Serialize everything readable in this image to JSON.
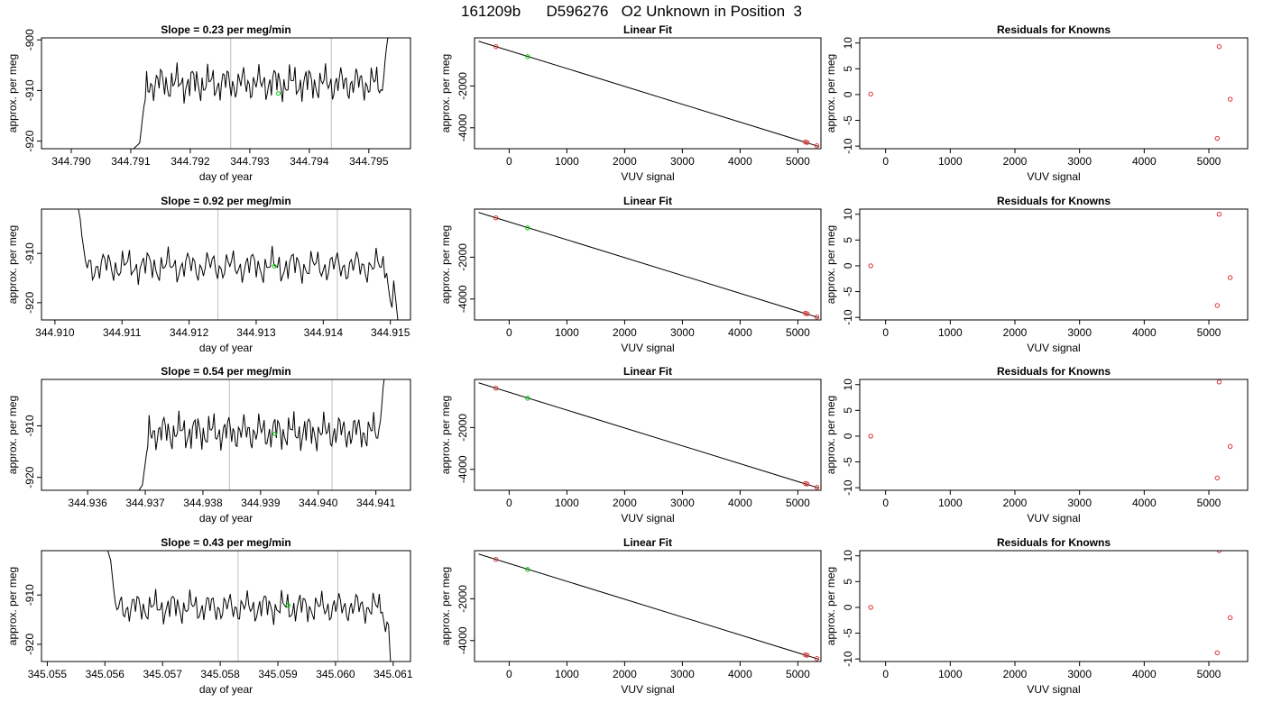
{
  "page": {
    "title": "161209b      D596276   O2 Unknown in Position  3"
  },
  "chart_data": [
    {
      "id": "r1-time",
      "type": "line",
      "title": "Slope =  0.23  per meg/min",
      "xlabel": "day of year",
      "ylabel": "approx. per meg",
      "xlim": [
        344.7895,
        344.7957
      ],
      "ylim": [
        -921.5,
        -899.6
      ],
      "xticks": [
        344.79,
        344.791,
        344.792,
        344.793,
        344.794,
        344.795
      ],
      "xtick_labels": [
        "344.790",
        "344.791",
        "344.792",
        "344.793",
        "344.794",
        "344.795"
      ],
      "yticks": [
        -920,
        -910,
        -900
      ],
      "ytick_labels": [
        "-920",
        "-910",
        "-900"
      ],
      "vlines": [
        344.79268,
        344.79437
      ],
      "start": [
        344.791,
        -922
      ],
      "end": [
        344.7955,
        -898
      ],
      "trace": {
        "x0": 344.79115,
        "x1": 344.79532,
        "start_values": [
          -920.4,
          -918,
          -915.5,
          -913.2,
          -911.8
        ],
        "base": -908.6,
        "amp": 1.9,
        "end_values": [
          -910.0,
          -907.5,
          -904,
          -901.5,
          -899.6
        ]
      },
      "green_point": [
        344.79348,
        -910.6
      ]
    },
    {
      "id": "r1-fit",
      "type": "scatter",
      "title": "Linear Fit",
      "xlabel": "VUV signal",
      "ylabel": "approx. per meg",
      "xlim": [
        -600,
        5400
      ],
      "ylim": [
        -5000,
        300
      ],
      "xticks": [
        0,
        1000,
        2000,
        3000,
        4000,
        5000
      ],
      "xtick_labels": [
        "0",
        "1000",
        "2000",
        "3000",
        "4000",
        "5000"
      ],
      "yticks": [
        -4000,
        -2000
      ],
      "ytick_labels": [
        "-4000",
        "-2000"
      ],
      "fit_line": [
        [
          -530,
          140
        ],
        [
          5360,
          -4890
        ]
      ],
      "points_red": [
        [
          -230,
          -120
        ],
        [
          5130,
          -4680
        ],
        [
          5160,
          -4700
        ],
        [
          5330,
          -4860
        ]
      ],
      "points_green": [
        [
          320,
          -600
        ]
      ]
    },
    {
      "id": "r1-resid",
      "type": "scatter",
      "title": "Residuals for Knowns",
      "xlabel": "VUV signal",
      "ylabel": "approx. per meg",
      "xlim": [
        -400,
        5600
      ],
      "ylim": [
        -10.5,
        11
      ],
      "xticks": [
        0,
        1000,
        2000,
        3000,
        4000,
        5000
      ],
      "xtick_labels": [
        "0",
        "1000",
        "2000",
        "3000",
        "4000",
        "5000"
      ],
      "yticks": [
        -10,
        -5,
        0,
        5,
        10
      ],
      "ytick_labels": [
        "-10",
        "-5",
        "0",
        "5",
        "10"
      ],
      "points_red": [
        [
          -230,
          0.1
        ],
        [
          5130,
          -8.5
        ],
        [
          5160,
          9.3
        ],
        [
          5330,
          -0.9
        ]
      ]
    },
    {
      "id": "r2-time",
      "type": "line",
      "title": "Slope =  0.92  per meg/min",
      "xlabel": "day of year",
      "ylabel": "approx. per meg",
      "xlim": [
        344.9098,
        344.9153
      ],
      "ylim": [
        -923.5,
        -901
      ],
      "xticks": [
        344.91,
        344.911,
        344.912,
        344.913,
        344.914,
        344.915
      ],
      "xtick_labels": [
        "344.910",
        "344.911",
        "344.912",
        "344.913",
        "344.914",
        "344.915"
      ],
      "yticks": [
        -920,
        -910
      ],
      "ytick_labels": [
        "-920",
        "-910"
      ],
      "vlines": [
        344.91243,
        344.91421
      ],
      "start": [
        344.9101,
        -900
      ],
      "end": [
        344.91513,
        -926
      ],
      "trace": {
        "x0": 344.91035,
        "x1": 344.91505,
        "start_values": [
          -901,
          -903,
          -906.5,
          -909,
          -911.5
        ],
        "base": -912.6,
        "amp": 1.8,
        "end_values": [
          -914,
          -917,
          -919.5,
          -921,
          -915.5
        ]
      },
      "green_point": [
        344.91327,
        -912.6
      ]
    },
    {
      "id": "r2-fit",
      "type": "scatter",
      "title": "Linear Fit",
      "xlabel": "VUV signal",
      "ylabel": "approx. per meg",
      "xlim": [
        -600,
        5400
      ],
      "ylim": [
        -5000,
        300
      ],
      "xticks": [
        0,
        1000,
        2000,
        3000,
        4000,
        5000
      ],
      "xtick_labels": [
        "0",
        "1000",
        "2000",
        "3000",
        "4000",
        "5000"
      ],
      "yticks": [
        -4000,
        -2000
      ],
      "ytick_labels": [
        "-4000",
        "-2000"
      ],
      "fit_line": [
        [
          -530,
          140
        ],
        [
          5360,
          -4890
        ]
      ],
      "points_red": [
        [
          -230,
          -120
        ],
        [
          5130,
          -4680
        ],
        [
          5160,
          -4700
        ],
        [
          5330,
          -4860
        ]
      ],
      "points_green": [
        [
          320,
          -600
        ]
      ]
    },
    {
      "id": "r2-resid",
      "type": "scatter",
      "title": "Residuals for Knowns",
      "xlabel": "VUV signal",
      "ylabel": "approx. per meg",
      "xlim": [
        -400,
        5600
      ],
      "ylim": [
        -10.5,
        11
      ],
      "xticks": [
        0,
        1000,
        2000,
        3000,
        4000,
        5000
      ],
      "xtick_labels": [
        "0",
        "1000",
        "2000",
        "3000",
        "4000",
        "5000"
      ],
      "yticks": [
        -10,
        -5,
        0,
        5,
        10
      ],
      "ytick_labels": [
        "-10",
        "-5",
        "0",
        "5",
        "10"
      ],
      "points_red": [
        [
          -230,
          0.0
        ],
        [
          5130,
          -7.7
        ],
        [
          5160,
          10.0
        ],
        [
          5330,
          -2.3
        ]
      ]
    },
    {
      "id": "r3-time",
      "type": "line",
      "title": "Slope =  0.54  per meg/min",
      "xlabel": "day of year",
      "ylabel": "approx. per meg",
      "xlim": [
        344.9352,
        344.9416
      ],
      "ylim": [
        -922.5,
        -901
      ],
      "xticks": [
        344.936,
        344.937,
        344.938,
        344.939,
        344.94,
        344.941
      ],
      "xtick_labels": [
        "344.936",
        "344.937",
        "344.938",
        "344.939",
        "344.940",
        "344.941"
      ],
      "yticks": [
        -920,
        -910
      ],
      "ytick_labels": [
        "-920",
        "-910"
      ],
      "vlines": [
        344.93846,
        344.94024
      ],
      "start": [
        344.9368,
        -924
      ],
      "end": [
        344.9412,
        -899
      ],
      "trace": {
        "x0": 344.93695,
        "x1": 344.94115,
        "start_values": [
          -921.5,
          -919.5,
          -917.5,
          -915.5,
          -914
        ],
        "base": -911.2,
        "amp": 1.9,
        "end_values": [
          -910.5,
          -909,
          -906,
          -902.5,
          -900.5
        ]
      },
      "green_point": [
        344.93925,
        -911.6
      ]
    },
    {
      "id": "r3-fit",
      "type": "scatter",
      "title": "Linear Fit",
      "xlabel": "VUV signal",
      "ylabel": "approx. per meg",
      "xlim": [
        -600,
        5400
      ],
      "ylim": [
        -5000,
        300
      ],
      "xticks": [
        0,
        1000,
        2000,
        3000,
        4000,
        5000
      ],
      "xtick_labels": [
        "0",
        "1000",
        "2000",
        "3000",
        "4000",
        "5000"
      ],
      "yticks": [
        -4000,
        -2000
      ],
      "ytick_labels": [
        "-4000",
        "-2000"
      ],
      "fit_line": [
        [
          -530,
          140
        ],
        [
          5360,
          -4890
        ]
      ],
      "points_red": [
        [
          -230,
          -120
        ],
        [
          5130,
          -4680
        ],
        [
          5160,
          -4700
        ],
        [
          5330,
          -4860
        ]
      ],
      "points_green": [
        [
          320,
          -600
        ]
      ]
    },
    {
      "id": "r3-resid",
      "type": "scatter",
      "title": "Residuals for Knowns",
      "xlabel": "VUV signal",
      "ylabel": "approx. per meg",
      "xlim": [
        -400,
        5600
      ],
      "ylim": [
        -10.5,
        11
      ],
      "xticks": [
        0,
        1000,
        2000,
        3000,
        4000,
        5000
      ],
      "xtick_labels": [
        "0",
        "1000",
        "2000",
        "3000",
        "4000",
        "5000"
      ],
      "yticks": [
        -10,
        -5,
        0,
        5,
        10
      ],
      "ytick_labels": [
        "-10",
        "-5",
        "0",
        "5",
        "10"
      ],
      "points_red": [
        [
          -230,
          0.0
        ],
        [
          5130,
          -8.1
        ],
        [
          5160,
          10.5
        ],
        [
          5330,
          -2.0
        ]
      ]
    },
    {
      "id": "r4-time",
      "type": "line",
      "title": "Slope =  0.43  per meg/min",
      "xlabel": "day of year",
      "ylabel": "approx. per meg",
      "xlim": [
        345.0549,
        345.0613
      ],
      "ylim": [
        -923.5,
        -901
      ],
      "xticks": [
        345.055,
        345.056,
        345.057,
        345.058,
        345.059,
        345.06,
        345.061
      ],
      "xtick_labels": [
        "345.055",
        "345.056",
        "345.057",
        "345.058",
        "345.059",
        "345.060",
        "345.061"
      ],
      "yticks": [
        -920,
        -910
      ],
      "ytick_labels": [
        "-920",
        "-910"
      ],
      "vlines": [
        345.05831,
        345.06004
      ],
      "start": [
        345.056,
        -899
      ],
      "end": [
        345.06096,
        -925
      ],
      "trace": {
        "x0": 345.0561,
        "x1": 345.06092,
        "start_values": [
          -903,
          -906,
          -909,
          -911.5,
          -913
        ],
        "base": -912.5,
        "amp": 1.7,
        "end_values": [
          -913.5,
          -915.5,
          -917.5,
          -915.5,
          -916
        ]
      },
      "green_point": [
        345.05918,
        -912.1
      ]
    },
    {
      "id": "r4-fit",
      "type": "scatter",
      "title": "Linear Fit",
      "xlabel": "VUV signal",
      "ylabel": "approx. per meg",
      "xlim": [
        -600,
        5400
      ],
      "ylim": [
        -5000,
        300
      ],
      "xticks": [
        0,
        1000,
        2000,
        3000,
        4000,
        5000
      ],
      "xtick_labels": [
        "0",
        "1000",
        "2000",
        "3000",
        "4000",
        "5000"
      ],
      "yticks": [
        -4000,
        -2000
      ],
      "ytick_labels": [
        "-4000",
        "-2000"
      ],
      "fit_line": [
        [
          -530,
          140
        ],
        [
          5360,
          -4890
        ]
      ],
      "points_red": [
        [
          -230,
          -120
        ],
        [
          5130,
          -4680
        ],
        [
          5160,
          -4700
        ],
        [
          5330,
          -4860
        ]
      ],
      "points_green": [
        [
          320,
          -600
        ]
      ]
    },
    {
      "id": "r4-resid",
      "type": "scatter",
      "title": "Residuals for Knowns",
      "xlabel": "VUV signal",
      "ylabel": "approx. per meg",
      "xlim": [
        -400,
        5600
      ],
      "ylim": [
        -10.5,
        11
      ],
      "xticks": [
        0,
        1000,
        2000,
        3000,
        4000,
        5000
      ],
      "xtick_labels": [
        "0",
        "1000",
        "2000",
        "3000",
        "4000",
        "5000"
      ],
      "yticks": [
        -10,
        -5,
        0,
        5,
        10
      ],
      "ytick_labels": [
        "-10",
        "-5",
        "0",
        "5",
        "10"
      ],
      "points_red": [
        [
          -230,
          0.0
        ],
        [
          5130,
          -8.8
        ],
        [
          5160,
          11.0
        ],
        [
          5330,
          -2.0
        ]
      ]
    }
  ],
  "colors": {
    "axis": "#000000",
    "trace": "#000000",
    "vline": "#bebebe",
    "known_point": "#e03030",
    "unknown_point": "#00cc00"
  }
}
